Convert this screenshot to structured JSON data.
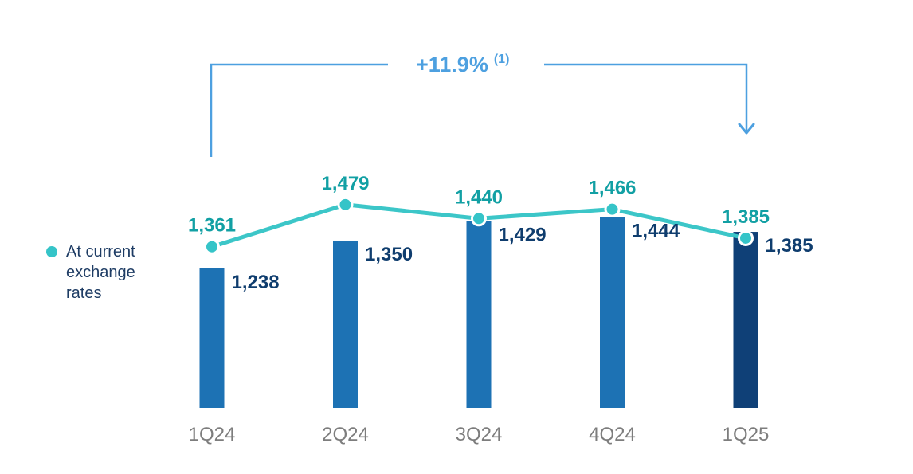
{
  "chart_data": {
    "type": "bar+line",
    "categories": [
      "1Q24",
      "2Q24",
      "3Q24",
      "4Q24",
      "1Q25"
    ],
    "bar_series": {
      "values": [
        1238,
        1350,
        1429,
        1444,
        1385
      ],
      "labels": [
        "1,238",
        "1,350",
        "1,429",
        "1,444",
        "1,385"
      ],
      "highlight_last_bar": true
    },
    "line_series": {
      "name": "At current exchange rates",
      "values": [
        1361,
        1479,
        1440,
        1466,
        1385
      ],
      "labels": [
        "1,361",
        "1,479",
        "1,440",
        "1,466",
        "1,385"
      ]
    },
    "annotation": {
      "text": "+11.9%",
      "superscript": "(1)",
      "from_category": "1Q24",
      "to_category": "1Q25"
    },
    "legend_position": "left",
    "grid": false,
    "axes_hidden": true
  },
  "legend": {
    "label": "At current exchange rates"
  },
  "colors": {
    "bar": "#1D72B4",
    "bar_highlight": "#0F4077",
    "line": "#3CC6C8",
    "line_point": "#35C4C8",
    "line_label": "#12A0A4",
    "bar_label": "#0F3D6E",
    "legend_text": "#1E3C64",
    "axis_label": "#7D7D7D",
    "arrow": "#4DA0E0",
    "background": "#FFFFFF"
  }
}
